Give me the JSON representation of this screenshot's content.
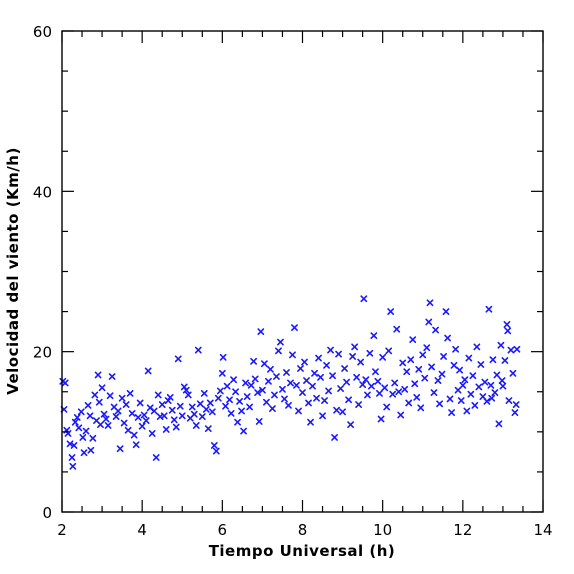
{
  "chart_data": {
    "type": "scatter",
    "xlabel": "Tiempo Universal (h)",
    "ylabel": "Velocidad del viento (Km/h)",
    "xlim": [
      2,
      14
    ],
    "ylim": [
      0,
      60
    ],
    "x_major_ticks": [
      2,
      4,
      6,
      8,
      10,
      12,
      14
    ],
    "y_major_ticks": [
      0,
      20,
      40,
      60
    ],
    "x_minor_step": 0.5,
    "y_minor_step": 5,
    "grid": false,
    "marker": "x",
    "marker_color": "#1a1aff",
    "series": [
      {
        "points": [
          [
            2.02,
            16.3
          ],
          [
            2.05,
            12.8
          ],
          [
            2.08,
            16.1
          ],
          [
            2.12,
            10.2
          ],
          [
            2.15,
            9.8
          ],
          [
            2.2,
            8.5
          ],
          [
            2.25,
            6.8
          ],
          [
            2.27,
            5.7
          ],
          [
            2.3,
            8.3
          ],
          [
            2.33,
            11.2
          ],
          [
            2.38,
            11.8
          ],
          [
            2.42,
            10.5
          ],
          [
            2.48,
            12.5
          ],
          [
            2.52,
            9.3
          ],
          [
            2.55,
            7.4
          ],
          [
            2.6,
            10.1
          ],
          [
            2.65,
            13.3
          ],
          [
            2.7,
            12.0
          ],
          [
            2.72,
            7.7
          ],
          [
            2.77,
            9.2
          ],
          [
            2.82,
            14.6
          ],
          [
            2.86,
            11.4
          ],
          [
            2.9,
            17.1
          ],
          [
            2.93,
            13.7
          ],
          [
            2.96,
            10.9
          ],
          [
            3.0,
            15.5
          ],
          [
            3.05,
            12.2
          ],
          [
            3.1,
            11.6
          ],
          [
            3.15,
            10.8
          ],
          [
            3.2,
            14.5
          ],
          [
            3.25,
            16.9
          ],
          [
            3.3,
            13.1
          ],
          [
            3.35,
            11.9
          ],
          [
            3.4,
            12.6
          ],
          [
            3.45,
            7.9
          ],
          [
            3.5,
            14.2
          ],
          [
            3.55,
            11.1
          ],
          [
            3.6,
            13.4
          ],
          [
            3.65,
            10.2
          ],
          [
            3.7,
            14.8
          ],
          [
            3.75,
            12.3
          ],
          [
            3.8,
            9.6
          ],
          [
            3.85,
            8.4
          ],
          [
            3.9,
            11.8
          ],
          [
            3.95,
            13.6
          ],
          [
            4.0,
            10.7
          ],
          [
            4.05,
            12.1
          ],
          [
            4.1,
            11.4
          ],
          [
            4.15,
            17.6
          ],
          [
            4.2,
            13.0
          ],
          [
            4.25,
            9.8
          ],
          [
            4.3,
            12.6
          ],
          [
            4.35,
            6.8
          ],
          [
            4.4,
            14.6
          ],
          [
            4.45,
            11.9
          ],
          [
            4.5,
            13.4
          ],
          [
            4.55,
            12.0
          ],
          [
            4.6,
            10.3
          ],
          [
            4.65,
            13.9
          ],
          [
            4.7,
            14.3
          ],
          [
            4.75,
            12.7
          ],
          [
            4.8,
            11.5
          ],
          [
            4.85,
            10.6
          ],
          [
            4.9,
            19.1
          ],
          [
            4.95,
            13.2
          ],
          [
            5.0,
            12.0
          ],
          [
            5.05,
            15.6
          ],
          [
            5.1,
            15.2
          ],
          [
            5.15,
            14.6
          ],
          [
            5.2,
            11.7
          ],
          [
            5.25,
            13.1
          ],
          [
            5.3,
            12.2
          ],
          [
            5.35,
            10.8
          ],
          [
            5.4,
            20.2
          ],
          [
            5.45,
            13.5
          ],
          [
            5.5,
            11.9
          ],
          [
            5.55,
            14.8
          ],
          [
            5.6,
            12.8
          ],
          [
            5.65,
            10.4
          ],
          [
            5.7,
            13.6
          ],
          [
            5.75,
            12.5
          ],
          [
            5.8,
            8.3
          ],
          [
            5.85,
            7.6
          ],
          [
            5.9,
            14.2
          ],
          [
            5.95,
            15.1
          ],
          [
            6.0,
            17.3
          ],
          [
            6.02,
            19.3
          ],
          [
            6.08,
            13.2
          ],
          [
            6.12,
            15.7
          ],
          [
            6.18,
            14.0
          ],
          [
            6.22,
            12.3
          ],
          [
            6.28,
            16.5
          ],
          [
            6.33,
            15.0
          ],
          [
            6.38,
            11.2
          ],
          [
            6.43,
            13.8
          ],
          [
            6.48,
            12.6
          ],
          [
            6.53,
            10.1
          ],
          [
            6.58,
            16.1
          ],
          [
            6.62,
            14.4
          ],
          [
            6.68,
            13.1
          ],
          [
            6.72,
            15.8
          ],
          [
            6.78,
            18.8
          ],
          [
            6.82,
            16.6
          ],
          [
            6.88,
            14.9
          ],
          [
            6.92,
            11.3
          ],
          [
            6.96,
            22.5
          ],
          [
            7.0,
            15.2
          ],
          [
            7.05,
            18.5
          ],
          [
            7.1,
            13.7
          ],
          [
            7.15,
            16.3
          ],
          [
            7.2,
            17.8
          ],
          [
            7.25,
            12.9
          ],
          [
            7.3,
            14.6
          ],
          [
            7.35,
            16.9
          ],
          [
            7.4,
            20.1
          ],
          [
            7.45,
            21.2
          ],
          [
            7.5,
            15.3
          ],
          [
            7.55,
            14.1
          ],
          [
            7.6,
            17.4
          ],
          [
            7.65,
            13.3
          ],
          [
            7.7,
            16.1
          ],
          [
            7.75,
            19.6
          ],
          [
            7.8,
            23.0
          ],
          [
            7.85,
            15.8
          ],
          [
            7.9,
            12.6
          ],
          [
            7.95,
            17.9
          ],
          [
            8.0,
            14.9
          ],
          [
            8.05,
            18.7
          ],
          [
            8.1,
            16.4
          ],
          [
            8.15,
            13.6
          ],
          [
            8.2,
            11.2
          ],
          [
            8.25,
            15.7
          ],
          [
            8.3,
            17.3
          ],
          [
            8.35,
            14.2
          ],
          [
            8.4,
            19.2
          ],
          [
            8.45,
            16.8
          ],
          [
            8.5,
            12.0
          ],
          [
            8.55,
            13.9
          ],
          [
            8.6,
            18.3
          ],
          [
            8.65,
            15.1
          ],
          [
            8.7,
            20.2
          ],
          [
            8.75,
            17.0
          ],
          [
            8.8,
            9.3
          ],
          [
            8.85,
            12.7
          ],
          [
            8.9,
            19.7
          ],
          [
            8.95,
            15.4
          ],
          [
            9.0,
            12.5
          ],
          [
            9.05,
            17.9
          ],
          [
            9.1,
            16.2
          ],
          [
            9.15,
            14.0
          ],
          [
            9.2,
            10.9
          ],
          [
            9.25,
            19.4
          ],
          [
            9.3,
            20.6
          ],
          [
            9.35,
            16.8
          ],
          [
            9.4,
            13.4
          ],
          [
            9.45,
            18.7
          ],
          [
            9.5,
            15.9
          ],
          [
            9.53,
            26.6
          ],
          [
            9.58,
            16.5
          ],
          [
            9.62,
            14.6
          ],
          [
            9.68,
            19.8
          ],
          [
            9.72,
            15.7
          ],
          [
            9.78,
            22.0
          ],
          [
            9.82,
            17.5
          ],
          [
            9.88,
            16.3
          ],
          [
            9.92,
            14.8
          ],
          [
            9.96,
            11.6
          ],
          [
            10.0,
            19.3
          ],
          [
            10.05,
            15.5
          ],
          [
            10.1,
            13.1
          ],
          [
            10.15,
            20.1
          ],
          [
            10.2,
            25.0
          ],
          [
            10.25,
            14.7
          ],
          [
            10.3,
            16.1
          ],
          [
            10.35,
            22.8
          ],
          [
            10.4,
            15.0
          ],
          [
            10.45,
            12.1
          ],
          [
            10.5,
            18.6
          ],
          [
            10.55,
            15.3
          ],
          [
            10.6,
            17.5
          ],
          [
            10.65,
            13.6
          ],
          [
            10.7,
            19.0
          ],
          [
            10.75,
            21.5
          ],
          [
            10.8,
            16.0
          ],
          [
            10.85,
            14.3
          ],
          [
            10.9,
            17.8
          ],
          [
            10.95,
            13.0
          ],
          [
            11.0,
            19.6
          ],
          [
            11.05,
            16.7
          ],
          [
            11.1,
            20.5
          ],
          [
            11.15,
            23.7
          ],
          [
            11.18,
            26.1
          ],
          [
            11.22,
            18.1
          ],
          [
            11.28,
            14.9
          ],
          [
            11.32,
            22.7
          ],
          [
            11.38,
            16.4
          ],
          [
            11.42,
            13.5
          ],
          [
            11.48,
            17.2
          ],
          [
            11.52,
            19.4
          ],
          [
            11.58,
            25.0
          ],
          [
            11.62,
            21.7
          ],
          [
            11.68,
            14.1
          ],
          [
            11.72,
            12.4
          ],
          [
            11.78,
            18.3
          ],
          [
            11.82,
            20.3
          ],
          [
            11.88,
            15.2
          ],
          [
            11.92,
            17.7
          ],
          [
            11.96,
            13.9
          ],
          [
            12.0,
            15.8
          ],
          [
            12.05,
            16.5
          ],
          [
            12.1,
            12.6
          ],
          [
            12.15,
            19.2
          ],
          [
            12.2,
            14.7
          ],
          [
            12.25,
            17.0
          ],
          [
            12.3,
            13.3
          ],
          [
            12.35,
            20.6
          ],
          [
            12.4,
            15.6
          ],
          [
            12.45,
            18.4
          ],
          [
            12.5,
            14.4
          ],
          [
            12.55,
            16.2
          ],
          [
            12.6,
            13.8
          ],
          [
            12.65,
            25.3
          ],
          [
            12.7,
            15.8
          ],
          [
            12.75,
            19.0
          ],
          [
            12.8,
            14.9
          ],
          [
            12.85,
            17.1
          ],
          [
            12.9,
            11.0
          ],
          [
            12.95,
            20.8
          ],
          [
            13.0,
            15.7
          ],
          [
            13.05,
            18.9
          ],
          [
            13.1,
            23.4
          ],
          [
            13.15,
            13.9
          ],
          [
            13.2,
            20.2
          ],
          [
            13.25,
            17.3
          ],
          [
            13.3,
            12.4
          ],
          [
            13.33,
            13.4
          ],
          [
            13.35,
            20.3
          ],
          [
            13.12,
            22.6
          ],
          [
            12.98,
            16.4
          ],
          [
            12.72,
            14.2
          ]
        ]
      }
    ]
  }
}
